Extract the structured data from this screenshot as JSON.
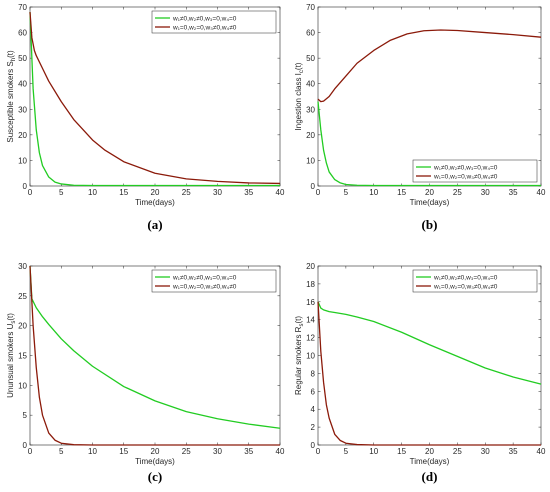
{
  "chart_data": [
    {
      "id": "a",
      "type": "line",
      "panel_label": "(a)",
      "xlabel": "Time(days)",
      "ylabel": "Susceptible smokers S_h(t)",
      "xlim": [
        0,
        40
      ],
      "ylim": [
        0,
        70
      ],
      "xticks": [
        0,
        5,
        10,
        15,
        20,
        25,
        30,
        35,
        40
      ],
      "yticks": [
        0,
        10,
        20,
        30,
        40,
        50,
        60,
        70
      ],
      "legend_position": "top-right",
      "series": [
        {
          "name": "w₁≠0,w₂≠0,w₃=0,w₄=0",
          "color": "#22cc22",
          "x": [
            0,
            0.5,
            1,
            1.5,
            2,
            3,
            4,
            5,
            7,
            10,
            15,
            20,
            30,
            40
          ],
          "values": [
            68,
            38,
            22,
            13,
            8,
            3.5,
            1.5,
            0.8,
            0.3,
            0.2,
            0.2,
            0.2,
            0.2,
            0.2
          ]
        },
        {
          "name": "w₁=0,w₂=0,w₃≠0,w₄≠0",
          "color": "#8b1a0a",
          "x": [
            0,
            0.3,
            0.7,
            1,
            2,
            3,
            5,
            7,
            10,
            12,
            15,
            20,
            25,
            30,
            35,
            40
          ],
          "values": [
            68,
            58,
            53,
            51,
            46,
            41,
            33,
            26,
            18,
            14,
            9.5,
            5,
            2.8,
            1.8,
            1.2,
            1
          ]
        }
      ]
    },
    {
      "id": "b",
      "type": "line",
      "panel_label": "(b)",
      "xlabel": "Time(days)",
      "ylabel": "Ingestion class I_c(t)",
      "xlim": [
        0,
        40
      ],
      "ylim": [
        0,
        70
      ],
      "xticks": [
        0,
        5,
        10,
        15,
        20,
        25,
        30,
        35,
        40
      ],
      "yticks": [
        0,
        10,
        20,
        30,
        40,
        50,
        60,
        70
      ],
      "legend_position": "bottom-right",
      "series": [
        {
          "name": "w₁≠0,w₂≠0,w₃=0,w₄=0",
          "color": "#22cc22",
          "x": [
            0,
            0.5,
            1,
            1.5,
            2,
            3,
            4,
            5,
            7,
            10,
            20,
            30,
            40
          ],
          "values": [
            33,
            22,
            14,
            9,
            5.5,
            2.5,
            1.2,
            0.6,
            0.3,
            0.2,
            0.2,
            0.2,
            0.2
          ]
        },
        {
          "name": "w₁=0,w₂=0,w₃≠0,w₄≠0",
          "color": "#8b1a0a",
          "x": [
            0,
            0.5,
            1,
            2,
            3,
            5,
            7,
            10,
            13,
            16,
            19,
            22,
            25,
            30,
            35,
            40
          ],
          "values": [
            34,
            33,
            33.2,
            35,
            38,
            43,
            48,
            53,
            57,
            59.5,
            60.7,
            61,
            60.8,
            60,
            59.2,
            58.2
          ]
        }
      ]
    },
    {
      "id": "c",
      "type": "line",
      "panel_label": "(c)",
      "xlabel": "Time(days)",
      "ylabel": "Ununsual smokers U_s(t)",
      "xlim": [
        0,
        40
      ],
      "ylim": [
        0,
        30
      ],
      "xticks": [
        0,
        5,
        10,
        15,
        20,
        25,
        30,
        35,
        40
      ],
      "yticks": [
        0,
        5,
        10,
        15,
        20,
        25,
        30
      ],
      "legend_position": "top-right",
      "series": [
        {
          "name": "w₁≠0,w₂≠0,w₃=0,w₄=0",
          "color": "#22cc22",
          "x": [
            0,
            0.3,
            1,
            2,
            3,
            5,
            7,
            10,
            15,
            20,
            25,
            30,
            35,
            40
          ],
          "values": [
            30,
            24.5,
            23,
            21.5,
            20.2,
            17.8,
            15.8,
            13.2,
            9.8,
            7.4,
            5.6,
            4.4,
            3.5,
            2.8
          ]
        },
        {
          "name": "w₁=0,w₂=0,w₃≠0,w₄≠0",
          "color": "#8b1a0a",
          "x": [
            0,
            0.5,
            1,
            1.5,
            2,
            3,
            4,
            5,
            7,
            10,
            20,
            30,
            40
          ],
          "values": [
            30,
            20,
            13,
            8,
            5,
            2,
            0.8,
            0.3,
            0.05,
            0,
            0,
            0,
            0
          ]
        }
      ]
    },
    {
      "id": "d",
      "type": "line",
      "panel_label": "(d)",
      "xlabel": "Time(days)",
      "ylabel": "Regular smokers R_s(t)",
      "xlim": [
        0,
        40
      ],
      "ylim": [
        0,
        20
      ],
      "xticks": [
        0,
        5,
        10,
        15,
        20,
        25,
        30,
        35,
        40
      ],
      "yticks": [
        0,
        2,
        4,
        6,
        8,
        10,
        12,
        14,
        16,
        18,
        20
      ],
      "legend_position": "top-right",
      "series": [
        {
          "name": "w₁≠0,w₂≠0,w₃=0,w₄=0",
          "color": "#22cc22",
          "x": [
            0,
            0.5,
            1,
            2,
            3,
            5,
            7,
            10,
            15,
            20,
            25,
            30,
            35,
            40
          ],
          "values": [
            16,
            15.3,
            15.1,
            14.9,
            14.8,
            14.6,
            14.3,
            13.8,
            12.6,
            11.2,
            9.9,
            8.6,
            7.6,
            6.8
          ]
        },
        {
          "name": "w₁=0,w₂=0,w₃≠0,w₄≠0",
          "color": "#8b1a0a",
          "x": [
            0,
            0.5,
            1,
            1.5,
            2,
            3,
            4,
            5,
            7,
            10,
            20,
            30,
            40
          ],
          "values": [
            16,
            10.5,
            7,
            4.5,
            3,
            1.2,
            0.5,
            0.2,
            0.05,
            0,
            0,
            0,
            0
          ]
        }
      ]
    }
  ]
}
